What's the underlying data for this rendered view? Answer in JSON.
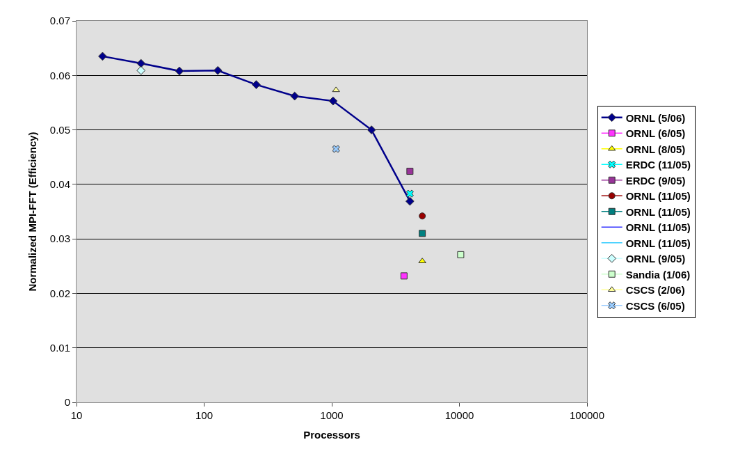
{
  "chart_data": {
    "type": "scatter",
    "xlabel": "Processors",
    "ylabel": "Normalized MPI-FFT (Efficiency)",
    "log": "x",
    "xlim": [
      10,
      100000
    ],
    "xticks": [
      10,
      100,
      1000,
      10000,
      100000
    ],
    "ylim": [
      0,
      0.07
    ],
    "yticks": [
      0,
      0.01,
      0.02,
      0.03,
      0.04,
      0.05,
      0.06,
      0.07
    ],
    "grid": "y",
    "legend": "right",
    "series": [
      {
        "name": "ORNL (5/06)",
        "type": "line",
        "color": "#00008b",
        "marker": "diamond",
        "x": [
          16,
          32,
          64,
          128,
          256,
          512,
          1024,
          2048,
          4096
        ],
        "values": [
          0.0635,
          0.0622,
          0.0608,
          0.0609,
          0.0583,
          0.0562,
          0.0553,
          0.05,
          0.0369
        ]
      },
      {
        "name": "ORNL (6/05)",
        "color": "#ff33ff",
        "marker": "square",
        "x": [
          3680
        ],
        "values": [
          0.0232
        ]
      },
      {
        "name": "ORNL (8/05)",
        "color": "#ffff00",
        "marker": "triangle",
        "x": [
          5120
        ],
        "values": [
          0.0259
        ]
      },
      {
        "name": "ERDC (11/05)",
        "color": "#00ffff",
        "marker": "cross",
        "x": [
          4096
        ],
        "values": [
          0.0383
        ]
      },
      {
        "name": "ERDC (9/05)",
        "color": "#993399",
        "marker": "square",
        "x": [
          4096
        ],
        "values": [
          0.0424
        ]
      },
      {
        "name": "ORNL (11/05)",
        "color": "#990000",
        "marker": "circle",
        "x": [
          5120
        ],
        "values": [
          0.0342
        ]
      },
      {
        "name": "ORNL (11/05)",
        "color": "#008080",
        "marker": "square",
        "x": [
          5120
        ],
        "values": [
          0.031
        ]
      },
      {
        "name": "ORNL (11/05)",
        "color": "#3333ff",
        "marker": "none"
      },
      {
        "name": "ORNL (11/05)",
        "color": "#33ccff",
        "marker": "none"
      },
      {
        "name": "ORNL (9/05)",
        "color": "#ccffff",
        "marker": "diamond",
        "x": [
          32
        ],
        "values": [
          0.0609
        ]
      },
      {
        "name": "Sandia (1/06)",
        "color": "#ccffcc",
        "marker": "square",
        "x": [
          10240
        ],
        "values": [
          0.0271
        ]
      },
      {
        "name": "CSCS (2/06)",
        "color": "#ffff99",
        "marker": "triangle",
        "x": [
          1080
        ],
        "values": [
          0.0573
        ]
      },
      {
        "name": "CSCS (6/05)",
        "color": "#99ccff",
        "marker": "cross",
        "x": [
          1080
        ],
        "values": [
          0.0465
        ]
      }
    ]
  }
}
